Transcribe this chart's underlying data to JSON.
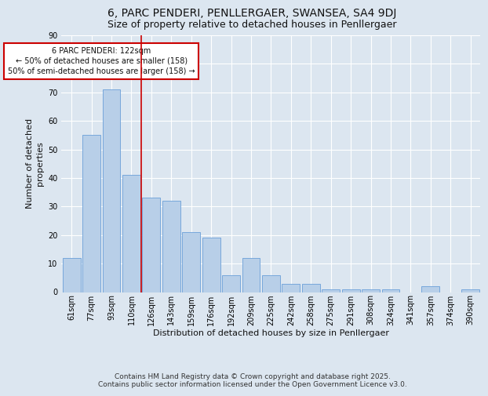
{
  "title_line1": "6, PARC PENDERI, PENLLERGAER, SWANSEA, SA4 9DJ",
  "title_line2": "Size of property relative to detached houses in Penllergaer",
  "xlabel": "Distribution of detached houses by size in Penllergaer",
  "ylabel": "Number of detached\nproperties",
  "categories": [
    "61sqm",
    "77sqm",
    "93sqm",
    "110sqm",
    "126sqm",
    "143sqm",
    "159sqm",
    "176sqm",
    "192sqm",
    "209sqm",
    "225sqm",
    "242sqm",
    "258sqm",
    "275sqm",
    "291sqm",
    "308sqm",
    "324sqm",
    "341sqm",
    "357sqm",
    "374sqm",
    "390sqm"
  ],
  "values": [
    12,
    55,
    71,
    41,
    33,
    32,
    21,
    19,
    6,
    12,
    6,
    3,
    3,
    1,
    1,
    1,
    1,
    0,
    2,
    0,
    1
  ],
  "bar_color": "#b8cfe8",
  "bar_edge_color": "#6a9fd8",
  "vline_x": 3.5,
  "annotation_text": "6 PARC PENDERI: 122sqm\n← 50% of detached houses are smaller (158)\n50% of semi-detached houses are larger (158) →",
  "annotation_box_color": "#ffffff",
  "annotation_box_edge": "#cc0000",
  "footer_text": "Contains HM Land Registry data © Crown copyright and database right 2025.\nContains public sector information licensed under the Open Government Licence v3.0.",
  "ylim": [
    0,
    90
  ],
  "background_color": "#dce6f0",
  "plot_background": "#dce6f0",
  "title_fontsize": 10,
  "subtitle_fontsize": 9,
  "axis_label_fontsize": 8,
  "tick_fontsize": 7,
  "footer_fontsize": 6.5,
  "annotation_fontsize": 7
}
